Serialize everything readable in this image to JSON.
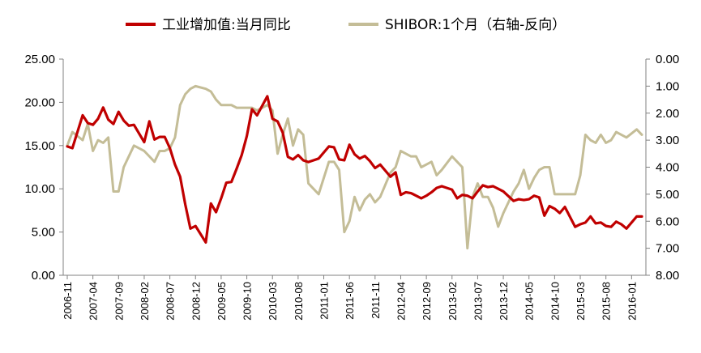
{
  "chart_data": {
    "type": "line",
    "legend_position": "top-center",
    "grid": false,
    "series": [
      {
        "name": "工业增加值:当月同比",
        "axis": "left",
        "color": "#C00000",
        "x": [
          "2006-11",
          "2006-12",
          "2007-02",
          "2007-03",
          "2007-04",
          "2007-05",
          "2007-06",
          "2007-07",
          "2007-08",
          "2007-09",
          "2007-10",
          "2007-11",
          "2007-12",
          "2008-02",
          "2008-03",
          "2008-04",
          "2008-05",
          "2008-06",
          "2008-07",
          "2008-08",
          "2008-09",
          "2008-10",
          "2008-11",
          "2008-12",
          "2009-02",
          "2009-03",
          "2009-04",
          "2009-05",
          "2009-06",
          "2009-07",
          "2009-08",
          "2009-09",
          "2009-10",
          "2009-11",
          "2009-12",
          "2010-02",
          "2010-03",
          "2010-04",
          "2010-05",
          "2010-06",
          "2010-07",
          "2010-08",
          "2010-09",
          "2010-10",
          "2010-11",
          "2010-12",
          "2011-02",
          "2011-03",
          "2011-04",
          "2011-05",
          "2011-06",
          "2011-07",
          "2011-08",
          "2011-09",
          "2011-10",
          "2011-11",
          "2011-12",
          "2012-02",
          "2012-03",
          "2012-04",
          "2012-05",
          "2012-06",
          "2012-07",
          "2012-08",
          "2012-09",
          "2012-10",
          "2012-11",
          "2012-12",
          "2013-02",
          "2013-03",
          "2013-04",
          "2013-05",
          "2013-06",
          "2013-07",
          "2013-08",
          "2013-09",
          "2013-10",
          "2013-11",
          "2013-12",
          "2014-02",
          "2014-03",
          "2014-04",
          "2014-05",
          "2014-06",
          "2014-07",
          "2014-08",
          "2014-09",
          "2014-10",
          "2014-11",
          "2014-12",
          "2015-02",
          "2015-03",
          "2015-04",
          "2015-05",
          "2015-06",
          "2015-07",
          "2015-08",
          "2015-09",
          "2015-10",
          "2015-11",
          "2015-12",
          "2016-02",
          "2016-03"
        ],
        "values": [
          14.9,
          14.7,
          18.5,
          17.6,
          17.4,
          18.1,
          19.4,
          18.0,
          17.5,
          18.9,
          17.9,
          17.3,
          17.4,
          15.4,
          17.8,
          15.7,
          16.0,
          16.0,
          14.7,
          12.8,
          11.4,
          8.2,
          5.4,
          5.7,
          3.8,
          8.3,
          7.3,
          8.9,
          10.7,
          10.8,
          12.3,
          13.9,
          16.1,
          19.2,
          18.5,
          20.7,
          18.1,
          17.8,
          16.5,
          13.7,
          13.4,
          13.9,
          13.3,
          13.1,
          13.3,
          13.5,
          14.9,
          14.8,
          13.4,
          13.3,
          15.1,
          14.0,
          13.5,
          13.8,
          13.2,
          12.4,
          12.8,
          11.4,
          11.9,
          9.3,
          9.6,
          9.5,
          9.2,
          8.9,
          9.2,
          9.6,
          10.1,
          10.3,
          9.9,
          8.9,
          9.3,
          9.2,
          8.9,
          9.7,
          10.4,
          10.2,
          10.3,
          10.0,
          9.7,
          8.6,
          8.8,
          8.7,
          8.8,
          9.2,
          9.0,
          6.9,
          8.0,
          7.7,
          7.2,
          7.9,
          5.6,
          5.9,
          6.1,
          6.8,
          6.0,
          6.1,
          5.7,
          5.6,
          6.2,
          5.9,
          5.4,
          6.8,
          6.8
        ]
      },
      {
        "name": "SHIBOR:1个月（右轴-反向）",
        "axis": "right",
        "inverted": true,
        "color": "#C4BD97",
        "x": [
          "2006-11",
          "2006-12",
          "2007-02",
          "2007-03",
          "2007-04",
          "2007-05",
          "2007-06",
          "2007-07",
          "2007-08",
          "2007-09",
          "2007-10",
          "2007-11",
          "2007-12",
          "2008-02",
          "2008-03",
          "2008-04",
          "2008-05",
          "2008-06",
          "2008-07",
          "2008-08",
          "2008-09",
          "2008-10",
          "2008-11",
          "2008-12",
          "2009-02",
          "2009-03",
          "2009-04",
          "2009-05",
          "2009-06",
          "2009-07",
          "2009-08",
          "2009-09",
          "2009-10",
          "2009-11",
          "2009-12",
          "2010-02",
          "2010-03",
          "2010-04",
          "2010-05",
          "2010-06",
          "2010-07",
          "2010-08",
          "2010-09",
          "2010-10",
          "2010-11",
          "2010-12",
          "2011-02",
          "2011-03",
          "2011-04",
          "2011-05",
          "2011-06",
          "2011-07",
          "2011-08",
          "2011-09",
          "2011-10",
          "2011-11",
          "2011-12",
          "2012-02",
          "2012-03",
          "2012-04",
          "2012-05",
          "2012-06",
          "2012-07",
          "2012-08",
          "2012-09",
          "2012-10",
          "2012-11",
          "2012-12",
          "2013-02",
          "2013-03",
          "2013-04",
          "2013-05",
          "2013-06",
          "2013-07",
          "2013-08",
          "2013-09",
          "2013-10",
          "2013-11",
          "2013-12",
          "2014-02",
          "2014-03",
          "2014-04",
          "2014-05",
          "2014-06",
          "2014-07",
          "2014-08",
          "2014-09",
          "2014-10",
          "2014-11",
          "2014-12",
          "2015-02",
          "2015-03",
          "2015-04",
          "2015-05",
          "2015-06",
          "2015-07",
          "2015-08",
          "2015-09",
          "2015-10",
          "2015-11",
          "2015-12",
          "2016-02",
          "2016-03"
        ],
        "values": [
          3.2,
          2.7,
          3.0,
          2.4,
          3.4,
          3.0,
          3.1,
          2.9,
          4.9,
          4.9,
          4.0,
          3.6,
          3.2,
          3.4,
          3.6,
          3.8,
          3.4,
          3.4,
          3.3,
          2.9,
          1.7,
          1.3,
          1.1,
          1.0,
          1.1,
          1.2,
          1.5,
          1.7,
          1.7,
          1.7,
          1.8,
          1.8,
          1.8,
          1.8,
          1.9,
          1.7,
          1.9,
          3.5,
          2.8,
          2.2,
          3.2,
          2.6,
          2.8,
          4.6,
          4.8,
          5.0,
          3.8,
          3.8,
          4.1,
          6.4,
          6.0,
          5.1,
          5.6,
          5.2,
          5.0,
          5.3,
          5.1,
          4.2,
          4.0,
          3.4,
          3.5,
          3.6,
          3.6,
          4.0,
          3.9,
          3.8,
          4.3,
          4.1,
          3.6,
          3.8,
          4.0,
          7.0,
          5.1,
          4.6,
          5.1,
          5.1,
          5.5,
          6.2,
          5.7,
          4.9,
          4.6,
          4.1,
          4.8,
          4.4,
          4.1,
          4.0,
          4.0,
          5.0,
          5.0,
          5.0,
          5.0,
          4.3,
          2.8,
          3.0,
          3.1,
          2.8,
          3.1,
          3.0,
          2.7,
          2.8,
          2.9,
          2.6,
          2.8
        ]
      }
    ],
    "left_axis": {
      "min": 0,
      "max": 25,
      "ticks": [
        "0.00",
        "5.00",
        "10.00",
        "15.00",
        "20.00",
        "25.00"
      ]
    },
    "right_axis": {
      "min": 0,
      "max": 8,
      "inverted": true,
      "ticks": [
        "0.00",
        "1.00",
        "2.00",
        "3.00",
        "4.00",
        "5.00",
        "6.00",
        "7.00",
        "8.00"
      ]
    },
    "x_tick_labels": [
      "2006-11",
      "2007-04",
      "2007-09",
      "2008-02",
      "2008-07",
      "2008-12",
      "2009-05",
      "2009-10",
      "2010-03",
      "2010-08",
      "2011-01",
      "2011-06",
      "2011-11",
      "2012-04",
      "2012-09",
      "2013-02",
      "2013-07",
      "2013-12",
      "2014-05",
      "2014-10",
      "2015-03",
      "2015-08",
      "2016-01"
    ]
  }
}
